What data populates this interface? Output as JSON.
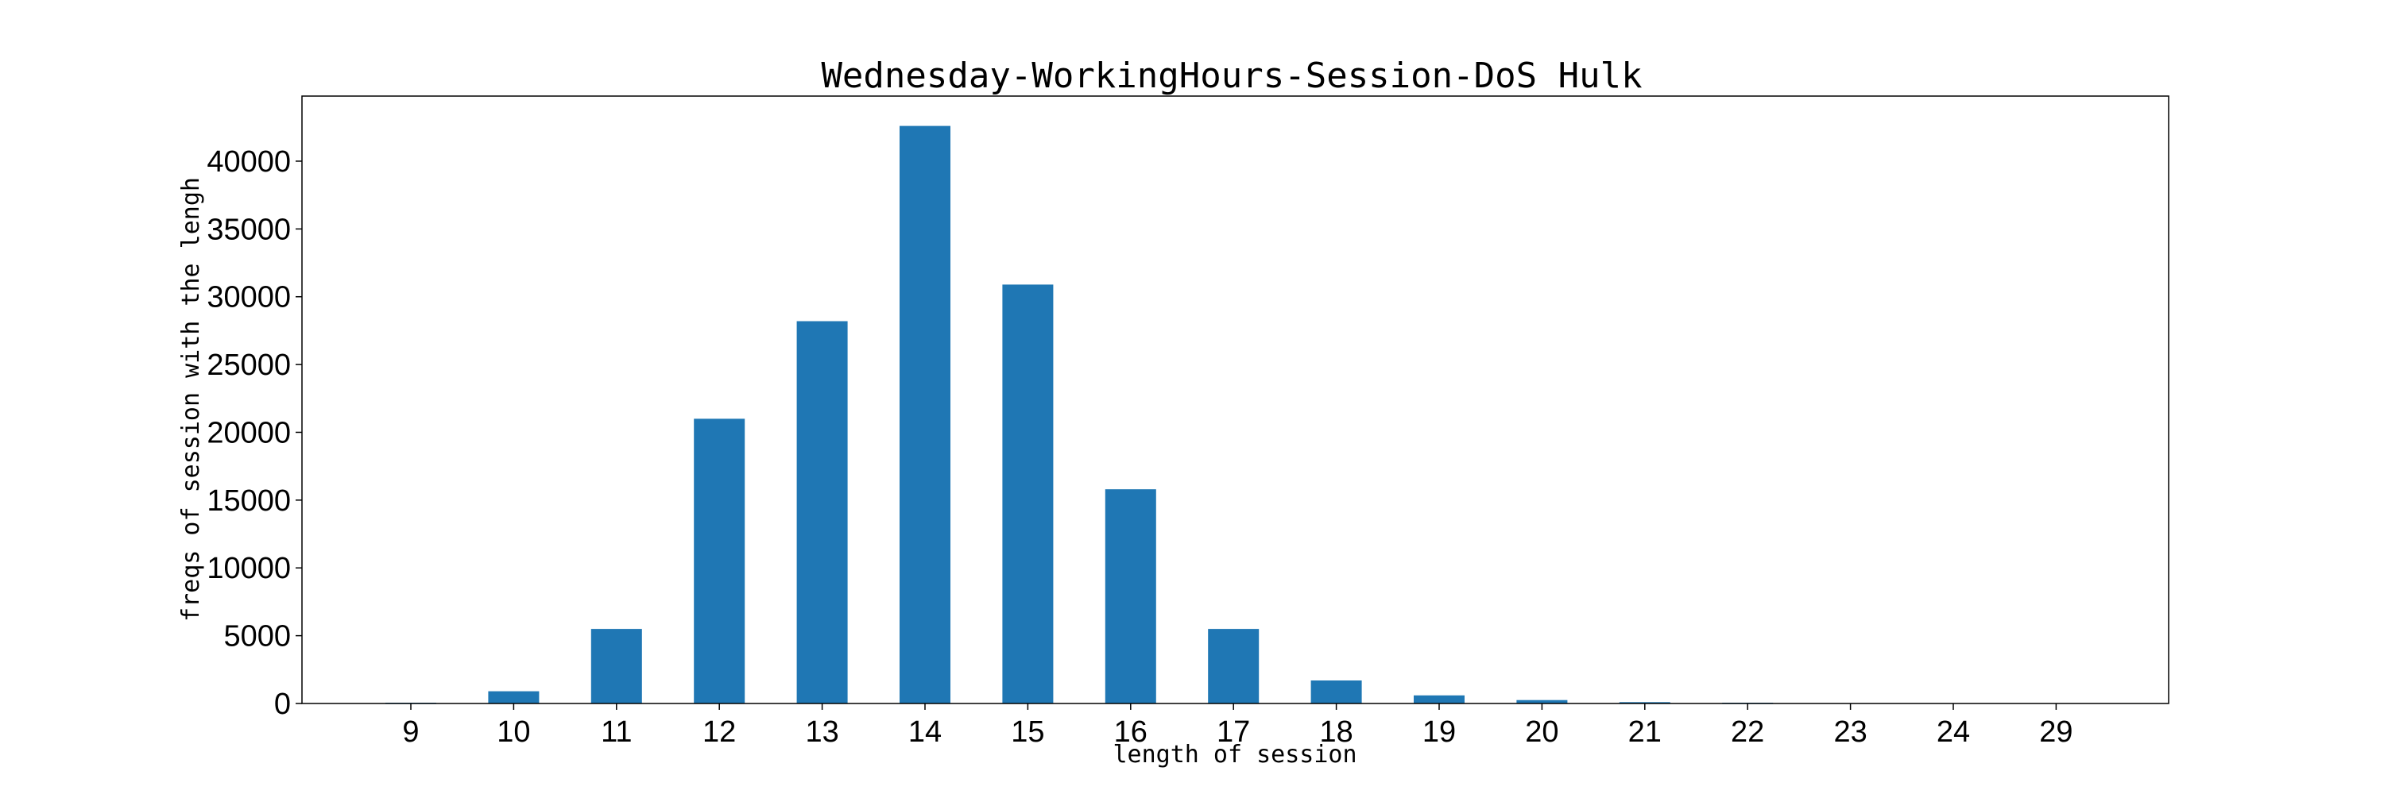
{
  "chart_data": {
    "type": "bar",
    "title": "Wednesday-WorkingHours-Session-DoS Hulk",
    "xlabel": "length of session",
    "ylabel": "freqs of session with the lengh",
    "categories": [
      "9",
      "10",
      "11",
      "12",
      "13",
      "14",
      "15",
      "16",
      "17",
      "18",
      "19",
      "20",
      "21",
      "22",
      "23",
      "24",
      "29"
    ],
    "values": [
      60,
      900,
      5500,
      21000,
      28200,
      42600,
      30900,
      15800,
      5500,
      1700,
      600,
      250,
      100,
      60,
      20,
      10,
      5
    ],
    "ylim": [
      0,
      44800
    ],
    "yticks": [
      0,
      5000,
      10000,
      15000,
      20000,
      25000,
      30000,
      35000,
      40000
    ],
    "bar_color": "#1f77b4",
    "grid": false,
    "legend": "none"
  }
}
